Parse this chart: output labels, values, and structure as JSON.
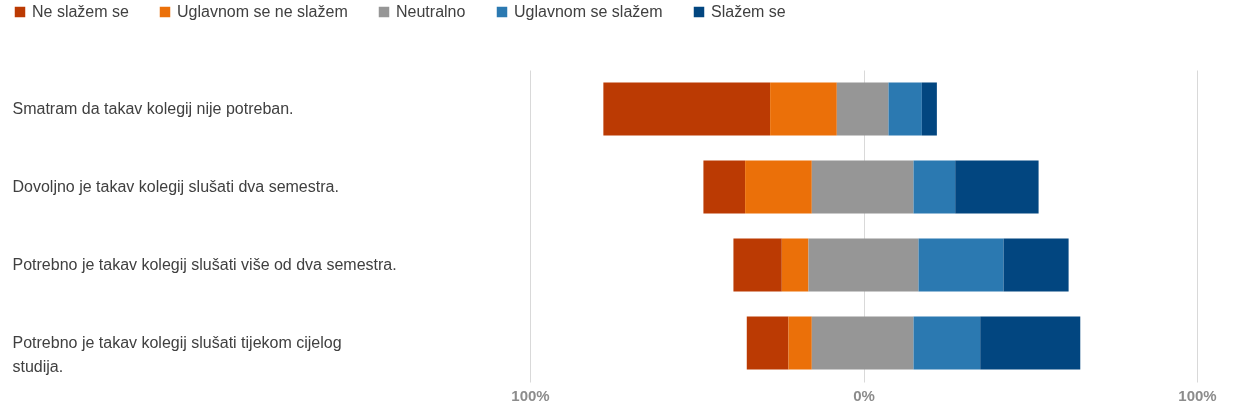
{
  "chart_data": {
    "type": "bar",
    "orientation": "horizontal",
    "stacked": true,
    "legend": "top left",
    "grid": "x",
    "categories": [
      "Smatram da takav kolegij nije potreban.",
      "Dovoljno je takav kolegij slušati dva semestra.",
      "Potrebno je takav kolegij slušati više od dva semestra.",
      "Potrebno je takav kolegij slušati tijekom cijelog studija."
    ],
    "xlim": [
      -100,
      100
    ],
    "xticks": [
      {
        "value": -100,
        "label": "100%"
      },
      {
        "value": 0,
        "label": "0%"
      },
      {
        "value": 100,
        "label": "100%"
      }
    ],
    "series": [
      {
        "name": "Ne slažem se",
        "color": "#bb3a03",
        "values": [
          50,
          12.5,
          14.5,
          12.5
        ],
        "base": [
          -78,
          -48,
          -39,
          -35
        ]
      },
      {
        "name": "Uglavnom se ne slažem",
        "color": "#eb7009",
        "values": [
          20,
          20,
          8,
          7
        ],
        "base": [
          -28,
          -35.5,
          -24.5,
          -22.5
        ]
      },
      {
        "name": "Neutralno",
        "color": "#969696",
        "values": [
          15.5,
          30.5,
          33,
          30.5
        ],
        "base": [
          -8,
          -15.5,
          -16.5,
          -15.5
        ]
      },
      {
        "name": "Uglavnom se slažem",
        "color": "#2b79b1",
        "values": [
          10,
          12.5,
          25.5,
          20
        ],
        "base": [
          7.5,
          15,
          16.5,
          15
        ]
      },
      {
        "name": "Slažem se",
        "color": "#024680",
        "values": [
          4.5,
          25,
          19.5,
          30
        ],
        "base": [
          17.5,
          27.5,
          42,
          35
        ]
      }
    ]
  }
}
